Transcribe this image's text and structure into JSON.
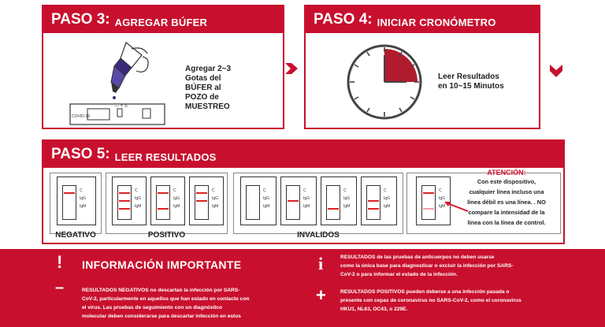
{
  "step3": {
    "step": "PASO 3:",
    "title": "AGREGAR BÚFER",
    "instruction_lines": [
      "Agregar 2~3",
      "Gotas del",
      "BÚFER al",
      "POZO de",
      "MUESTREO"
    ]
  },
  "step4": {
    "step": "PASO 4:",
    "title": "INICIAR CRONÓMETRO",
    "instruction_lines": [
      "Leer Resultados",
      "en 10~15 Minutos"
    ]
  },
  "step5": {
    "step": "PASO 5:",
    "title": "LEER RESULTADOS",
    "labels": {
      "negative": "NEGATIVO",
      "positive": "POSITIVO",
      "invalid": "INVALIDOS"
    },
    "cassette_marks": {
      "c": "C",
      "g": "IgG",
      "m": "IgM"
    },
    "attention": {
      "title": "ATENCIÓN:",
      "lines": [
        "Con este dispositivo,",
        "cualquier línea incluso una",
        "línea débil es una línea. . NO",
        "compare la intensidad de la",
        "línea con la línea de control."
      ]
    }
  },
  "info": {
    "exclaim": "!",
    "title": "INFORMACIÓN IMPORTANTE",
    "minus": "–",
    "i": "i",
    "plus": "+",
    "negative_lines": [
      "RESULTADOS NEGATIVOS no descartan la infección por SARS-",
      "CoV-2, particularmente en aquellos que han estado en contacto con",
      "el virus. Las pruebas de seguimiento con un diagnóstico",
      "molecular deben considerarse para descartar infección en estos"
    ],
    "right_lines_1": [
      "RESULTADOS de las pruebas de anticuerpos no deben usarse",
      "como la única base para diagnosticar o excluir la infección por SARS-",
      "CoV-2 o para informar el estado de la infección."
    ],
    "right_lines_2": [
      "RESULTADOS POSITIVOS pueden deberse a una infección pasada o",
      "presente con cepas de coronavirus no SARS-CoV-2, como el coronavirus",
      "HKU1, NL63, OC43, o 229E."
    ]
  },
  "colors": {
    "brand_red": "#c8102e"
  }
}
